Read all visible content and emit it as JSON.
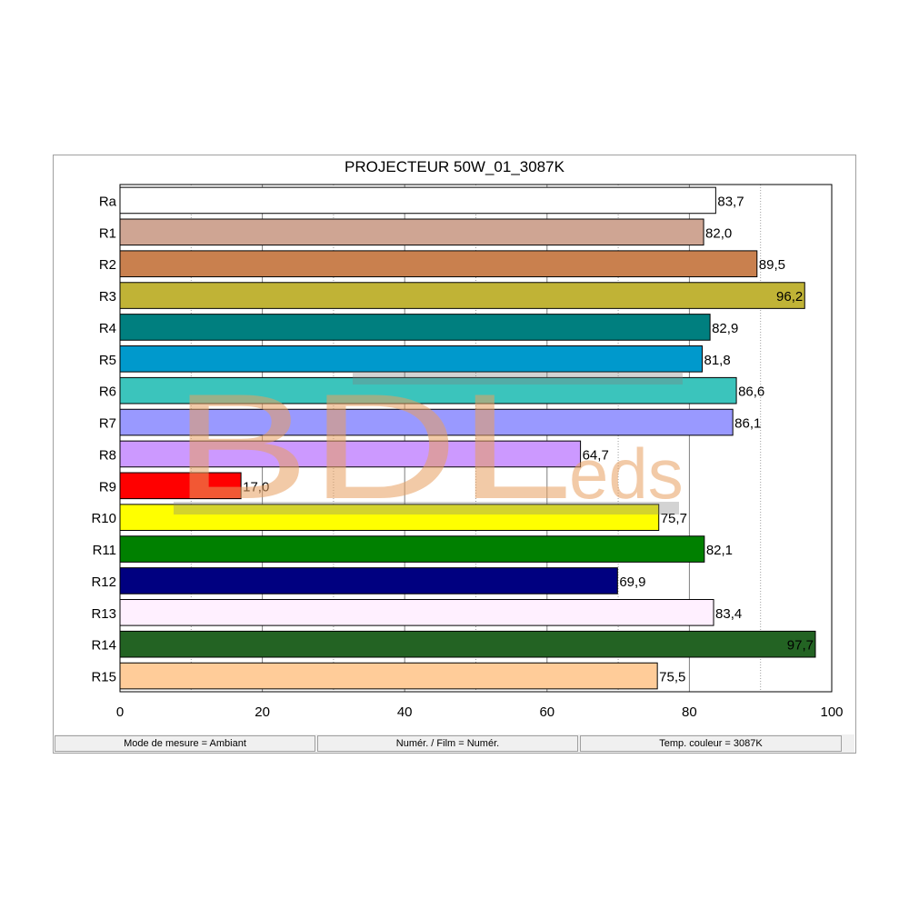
{
  "chart_data": {
    "type": "bar",
    "orientation": "horizontal",
    "title": "PROJECTEUR 50W_01_3087K",
    "categories": [
      "Ra",
      "R1",
      "R2",
      "R3",
      "R4",
      "R5",
      "R6",
      "R7",
      "R8",
      "R9",
      "R10",
      "R11",
      "R12",
      "R13",
      "R14",
      "R15"
    ],
    "values": [
      83.7,
      82.0,
      89.5,
      96.2,
      82.9,
      81.8,
      86.6,
      86.1,
      64.7,
      17.0,
      75.7,
      82.1,
      69.9,
      83.4,
      97.7,
      75.5
    ],
    "value_labels": [
      "83,7",
      "82,0",
      "89,5",
      "96,2",
      "82,9",
      "81,8",
      "86,6",
      "86,1",
      "64,7",
      "17,0",
      "75,7",
      "82,1",
      "69,9",
      "83,4",
      "97,7",
      "75,5"
    ],
    "label_inside": [
      false,
      false,
      false,
      true,
      false,
      false,
      false,
      false,
      false,
      false,
      false,
      false,
      false,
      false,
      true,
      false
    ],
    "colors": [
      "#ffffff",
      "#cfa593",
      "#c9804e",
      "#c0b336",
      "#007f7f",
      "#0099cc",
      "#3bc4bc",
      "#9999ff",
      "#cc99ff",
      "#ff0000",
      "#ffff00",
      "#008000",
      "#000080",
      "#fff0ff",
      "#236323",
      "#ffcc99"
    ],
    "xlim": [
      0,
      100
    ],
    "x_ticks": [
      0,
      20,
      40,
      60,
      80,
      100
    ],
    "x_tick_labels": [
      "0",
      "20",
      "40",
      "60",
      "80",
      "100"
    ],
    "grid": true,
    "legend": "none"
  },
  "status_bar": {
    "mode": "Mode de mesure = Ambiant",
    "film": "Numér. / Film = Numér.",
    "temperature": "Temp. couleur = 3087K"
  },
  "watermark": {
    "main": "BDL",
    "suffix": "eds",
    "color": "#e8a060"
  }
}
